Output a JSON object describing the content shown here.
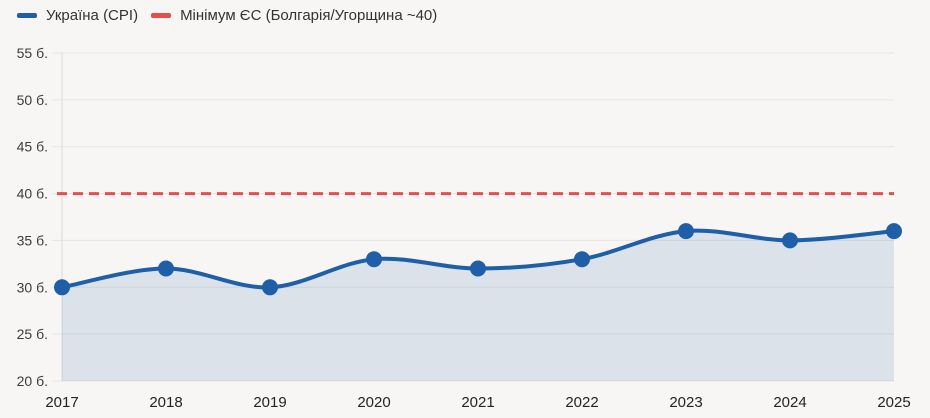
{
  "legend": {
    "items": [
      {
        "label": "Україна (CPI)",
        "color": "#1f5fa8"
      },
      {
        "label": "Мінімум ЄС (Болгарія/Угорщина ~40)",
        "color": "#e2504c"
      }
    ]
  },
  "chart_data": {
    "type": "line",
    "title": "",
    "xlabel": "",
    "ylabel": "",
    "x": [
      "2017",
      "2018",
      "2019",
      "2020",
      "2021",
      "2022",
      "2023",
      "2024",
      "2025"
    ],
    "series": [
      {
        "name": "Україна (CPI)",
        "type": "line",
        "values": [
          30,
          32,
          30,
          33,
          32,
          33,
          36,
          35,
          36
        ],
        "color": "#1f5fa8",
        "area_fill": "rgba(31,95,168,0.13)",
        "marker": "circle",
        "marker_radius": 8,
        "line_width": 4,
        "smooth": true
      },
      {
        "name": "Мінімум ЄС (Болгарія/Угорщина ~40)",
        "type": "hline",
        "value": 40,
        "color": "#e2504c",
        "line_width": 3,
        "dash": "10 6"
      }
    ],
    "ylim": [
      20,
      55
    ],
    "yticks": [
      {
        "value": 20,
        "label": "20 б."
      },
      {
        "value": 25,
        "label": "25 б."
      },
      {
        "value": 30,
        "label": "30 б."
      },
      {
        "value": 35,
        "label": "35 б."
      },
      {
        "value": 40,
        "label": "40 б."
      },
      {
        "value": 45,
        "label": "45 б."
      },
      {
        "value": 50,
        "label": "50 б."
      },
      {
        "value": 55,
        "label": "55 б."
      }
    ],
    "grid": "horizontal",
    "legend_position": "top-left"
  },
  "colors": {
    "background": "#f7f6f4",
    "grid": "#e6e5e3",
    "axis": "#dcdbd9",
    "ytick_text": "#3c3c3c",
    "xtick_text": "#242424"
  }
}
